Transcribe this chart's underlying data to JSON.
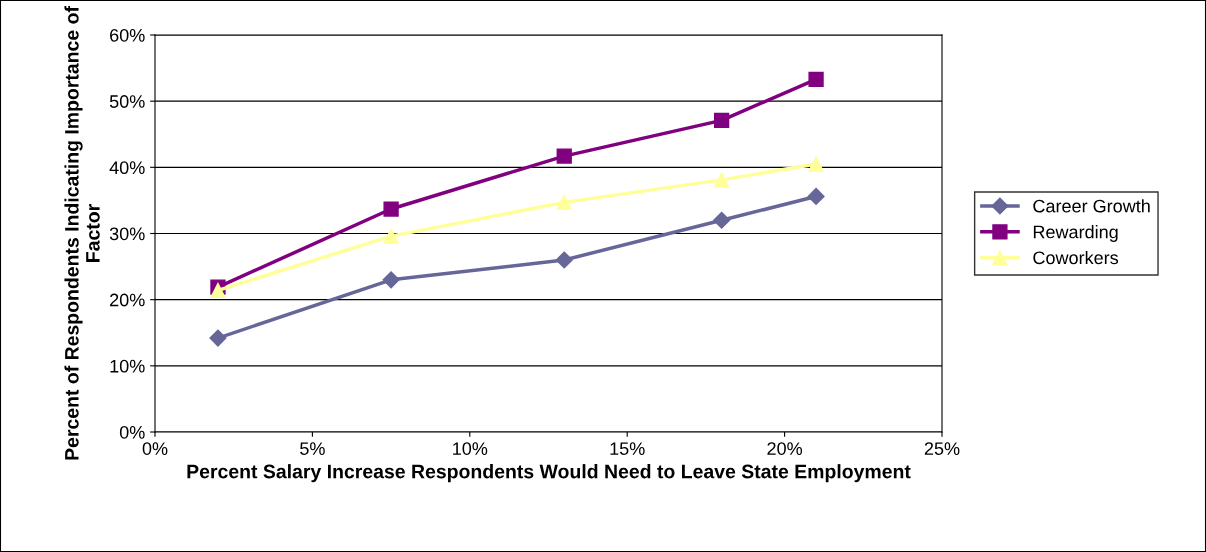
{
  "chart_data": {
    "type": "line",
    "xlabel": "Percent Salary Increase Respondents Would Need to Leave State Employment",
    "ylabel": "Percent of Respondents Indicating Importance of Factor",
    "x": [
      2,
      7.5,
      13,
      18,
      21
    ],
    "series": [
      {
        "name": "Career Growth",
        "color": "#666699",
        "marker": "diamond",
        "values": [
          14.2,
          23,
          26,
          32,
          35.6
        ]
      },
      {
        "name": "Rewarding",
        "color": "#800080",
        "marker": "square",
        "values": [
          21.9,
          33.7,
          41.7,
          47.1,
          53.3
        ]
      },
      {
        "name": "Coworkers",
        "color": "#ffff99",
        "marker": "triangle",
        "values": [
          21.4,
          29.6,
          34.7,
          38.1,
          40.5
        ]
      }
    ],
    "xlim": [
      0,
      25
    ],
    "xticks": [
      {
        "value": 0,
        "label": "0%"
      },
      {
        "value": 5,
        "label": "5%"
      },
      {
        "value": 10,
        "label": "10%"
      },
      {
        "value": 15,
        "label": "15%"
      },
      {
        "value": 20,
        "label": "20%"
      },
      {
        "value": 25,
        "label": "25%"
      }
    ],
    "ylim": [
      0,
      60
    ],
    "yticks": [
      {
        "value": 0,
        "label": "0%"
      },
      {
        "value": 10,
        "label": "10%"
      },
      {
        "value": 20,
        "label": "20%"
      },
      {
        "value": 30,
        "label": "30%"
      },
      {
        "value": 40,
        "label": "40%"
      },
      {
        "value": 50,
        "label": "50%"
      },
      {
        "value": 60,
        "label": "60%"
      }
    ],
    "grid": "y",
    "legend": "right",
    "line_style": "solid"
  }
}
